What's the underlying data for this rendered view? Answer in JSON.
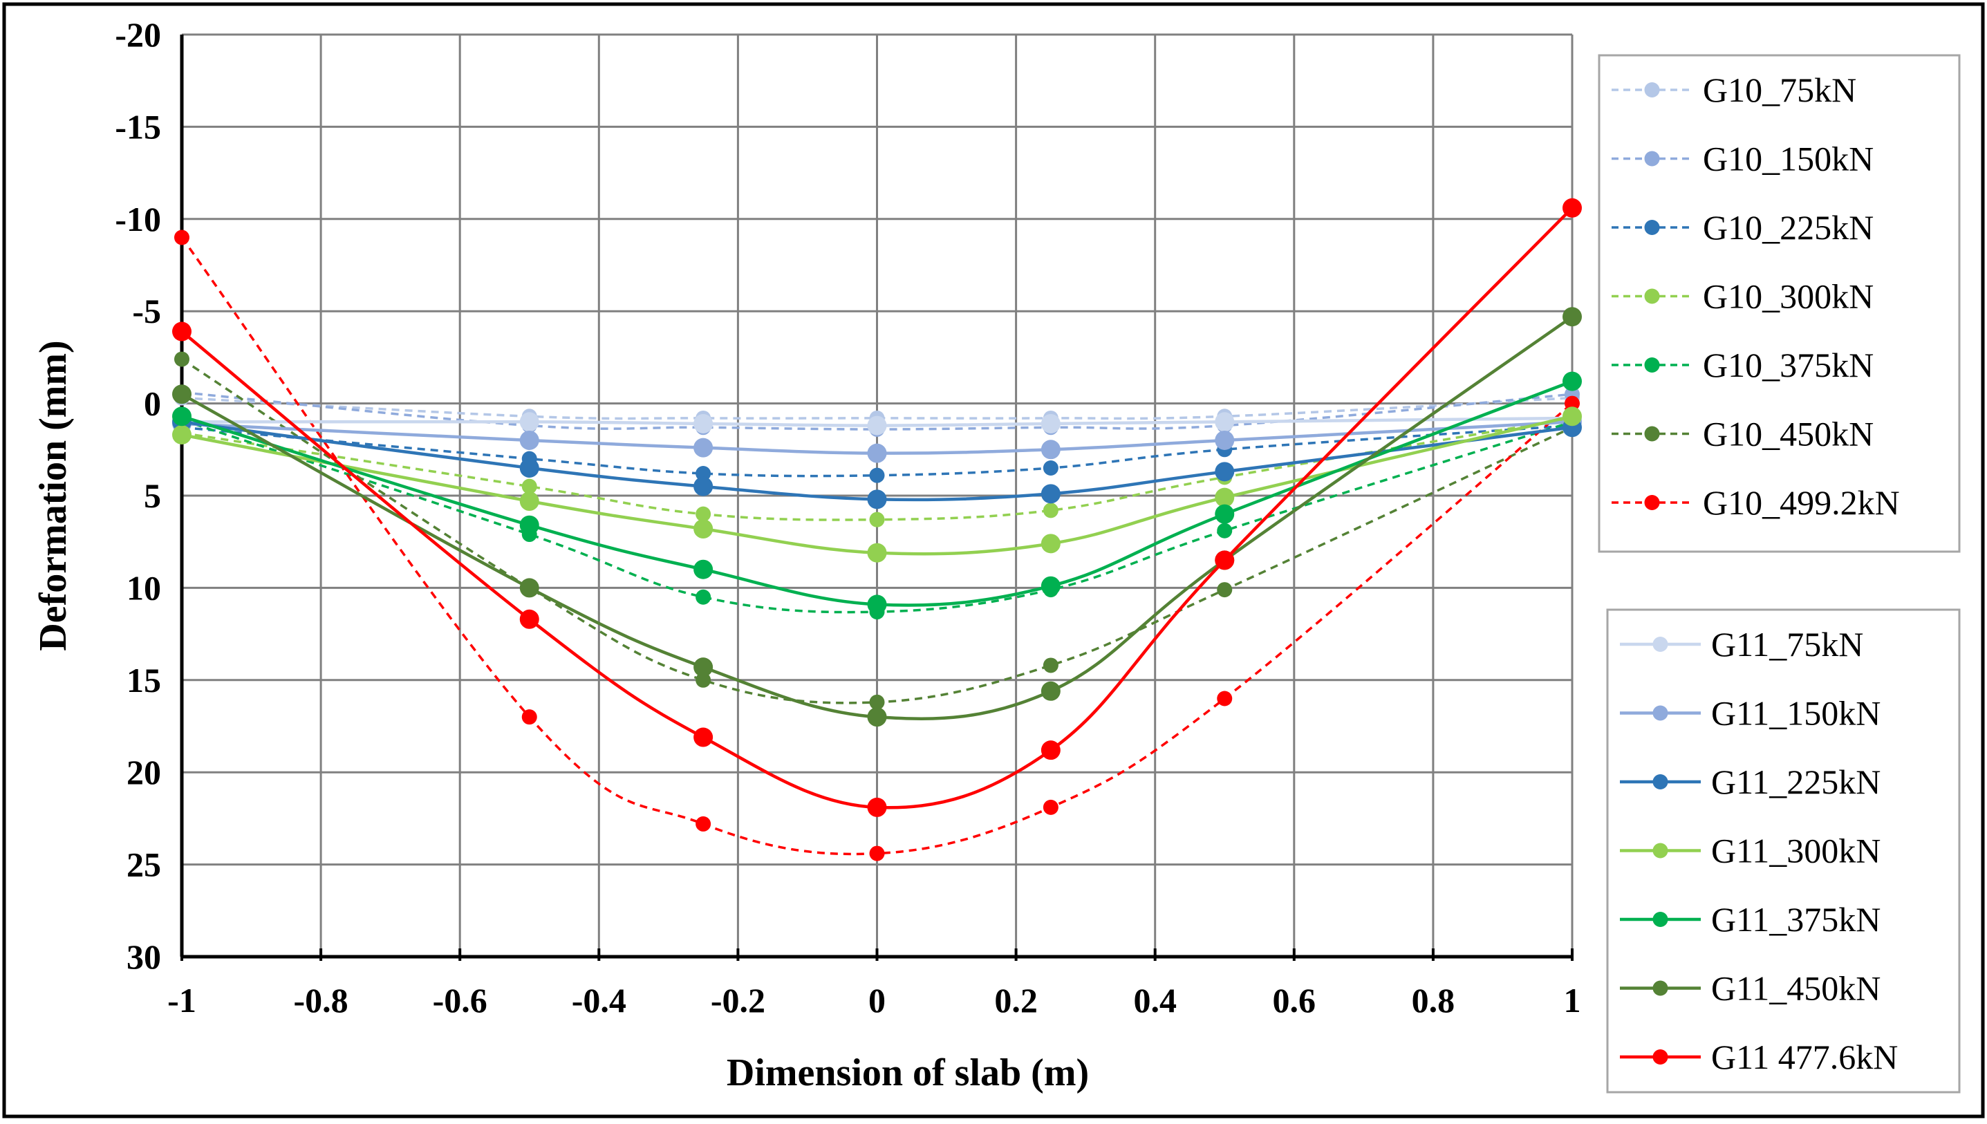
{
  "chart_data": {
    "type": "line",
    "xlabel": "Dimension of slab (m)",
    "ylabel": "Deformation (mm)",
    "xlim": [
      -1,
      1
    ],
    "ylim": [
      -20,
      30
    ],
    "y_inverted": true,
    "grid": true,
    "x_ticks": [
      "-1",
      "-0.8",
      "-0.6",
      "-0.4",
      "-0.2",
      "0",
      "0.2",
      "0.4",
      "0.6",
      "0.8",
      "1"
    ],
    "y_ticks": [
      "-20",
      "-15",
      "-10",
      "-5",
      "0",
      "5",
      "10",
      "15",
      "20",
      "25",
      "30"
    ],
    "x": [
      -1,
      -0.5,
      -0.25,
      0,
      0.25,
      0.5,
      1
    ],
    "legend_groups": [
      {
        "position": "top-right",
        "entries": [
          0,
          1,
          2,
          3,
          4,
          5,
          6
        ]
      },
      {
        "position": "bottom-right",
        "entries": [
          7,
          8,
          9,
          10,
          11,
          12,
          13
        ]
      }
    ],
    "series": [
      {
        "name": "G10_75kN",
        "style": "dashed",
        "color": "#b4c7e7",
        "values": [
          -0.3,
          0.7,
          0.8,
          0.8,
          0.8,
          0.7,
          -0.3
        ]
      },
      {
        "name": "G10_150kN",
        "style": "dashed",
        "color": "#8faadc",
        "values": [
          -0.6,
          1.2,
          1.3,
          1.4,
          1.3,
          1.2,
          -0.5
        ]
      },
      {
        "name": "G10_225kN",
        "style": "dashed",
        "color": "#2e75b6",
        "values": [
          1.3,
          3.0,
          3.8,
          3.9,
          3.5,
          2.5,
          1.2
        ]
      },
      {
        "name": "G10_300kN",
        "style": "dashed",
        "color": "#92d050",
        "values": [
          1.6,
          4.5,
          6.0,
          6.3,
          5.8,
          4.0,
          0.8
        ]
      },
      {
        "name": "G10_375kN",
        "style": "dashed",
        "color": "#00b050",
        "values": [
          0.9,
          7.1,
          10.5,
          11.3,
          10.1,
          6.9,
          1.0
        ]
      },
      {
        "name": "G10_450kN",
        "style": "dashed",
        "color": "#548235",
        "values": [
          -2.4,
          10.0,
          15.0,
          16.2,
          14.2,
          10.1,
          1.3
        ]
      },
      {
        "name": "G10_499.2kN",
        "style": "dashed",
        "color": "#ff0000",
        "values": [
          -9.0,
          17.0,
          22.8,
          24.4,
          21.9,
          16.0,
          0.0
        ]
      },
      {
        "name": "G11_75kN",
        "style": "solid",
        "color": "#c9d7ee",
        "values": [
          1.0,
          1.0,
          1.1,
          1.2,
          1.1,
          1.0,
          0.8
        ]
      },
      {
        "name": "G11_150kN",
        "style": "solid",
        "color": "#8faadc",
        "values": [
          1.1,
          2.0,
          2.4,
          2.7,
          2.5,
          2.0,
          1.0
        ]
      },
      {
        "name": "G11_225kN",
        "style": "solid",
        "color": "#2e75b6",
        "values": [
          1.0,
          3.5,
          4.5,
          5.2,
          4.9,
          3.7,
          1.3
        ]
      },
      {
        "name": "G11_300kN",
        "style": "solid",
        "color": "#92d050",
        "values": [
          1.7,
          5.3,
          6.8,
          8.1,
          7.6,
          5.1,
          0.7
        ]
      },
      {
        "name": "G11_375kN",
        "style": "solid",
        "color": "#00b050",
        "values": [
          0.7,
          6.6,
          9.0,
          10.9,
          9.9,
          6.0,
          -1.2
        ]
      },
      {
        "name": "G11_450kN",
        "style": "solid",
        "color": "#548235",
        "values": [
          -0.5,
          10.0,
          14.3,
          17.0,
          15.6,
          8.5,
          -4.7
        ]
      },
      {
        "name": "G11  477.6kN",
        "style": "solid",
        "color": "#ff0000",
        "values": [
          -3.9,
          11.7,
          18.1,
          21.9,
          18.8,
          8.5,
          -10.6
        ]
      }
    ]
  }
}
